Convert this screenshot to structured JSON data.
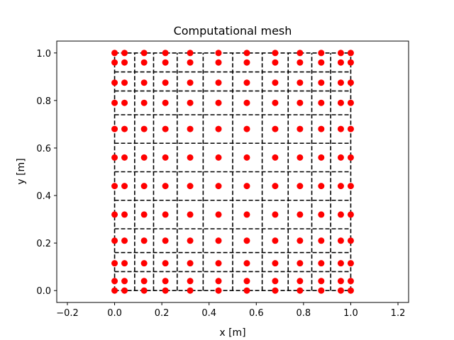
{
  "chart_data": {
    "type": "scatter",
    "title": "Computational mesh",
    "xlabel": "x [m]",
    "ylabel": "y [m]",
    "xlim": [
      -0.245,
      1.245
    ],
    "ylim": [
      -0.05,
      1.05
    ],
    "xticks": [
      -0.2,
      0.0,
      0.2,
      0.4,
      0.6,
      0.8,
      1.0,
      1.2
    ],
    "xtick_labels": [
      "−0.2",
      "0.0",
      "0.2",
      "0.4",
      "0.6",
      "0.8",
      "1.0",
      "1.2"
    ],
    "yticks": [
      0.0,
      0.2,
      0.4,
      0.6,
      0.8,
      1.0
    ],
    "ytick_labels": [
      "0.0",
      "0.2",
      "0.4",
      "0.6",
      "0.8",
      "1.0"
    ],
    "grid": false,
    "node_coordinates_x": [
      0.0,
      0.042,
      0.125,
      0.215,
      0.32,
      0.44,
      0.56,
      0.68,
      0.785,
      0.875,
      0.958,
      1.0
    ],
    "node_coordinates_y": [
      0.0,
      0.04,
      0.115,
      0.21,
      0.32,
      0.44,
      0.56,
      0.68,
      0.79,
      0.875,
      0.96,
      1.0
    ],
    "cell_edges_x": [
      0.0,
      0.085,
      0.165,
      0.265,
      0.375,
      0.5,
      0.625,
      0.735,
      0.835,
      0.915,
      1.0
    ],
    "cell_edges_y": [
      0.0,
      0.08,
      0.16,
      0.26,
      0.38,
      0.5,
      0.62,
      0.74,
      0.84,
      0.92,
      1.0
    ],
    "series": [
      {
        "marker": "circle",
        "color": "#ff0000"
      },
      {
        "linestyle": "dashed",
        "color": "#000000"
      }
    ],
    "colors": {
      "points": "#ff0000",
      "mesh_lines": "#000000",
      "axes": "#000000",
      "background": "#ffffff"
    }
  }
}
